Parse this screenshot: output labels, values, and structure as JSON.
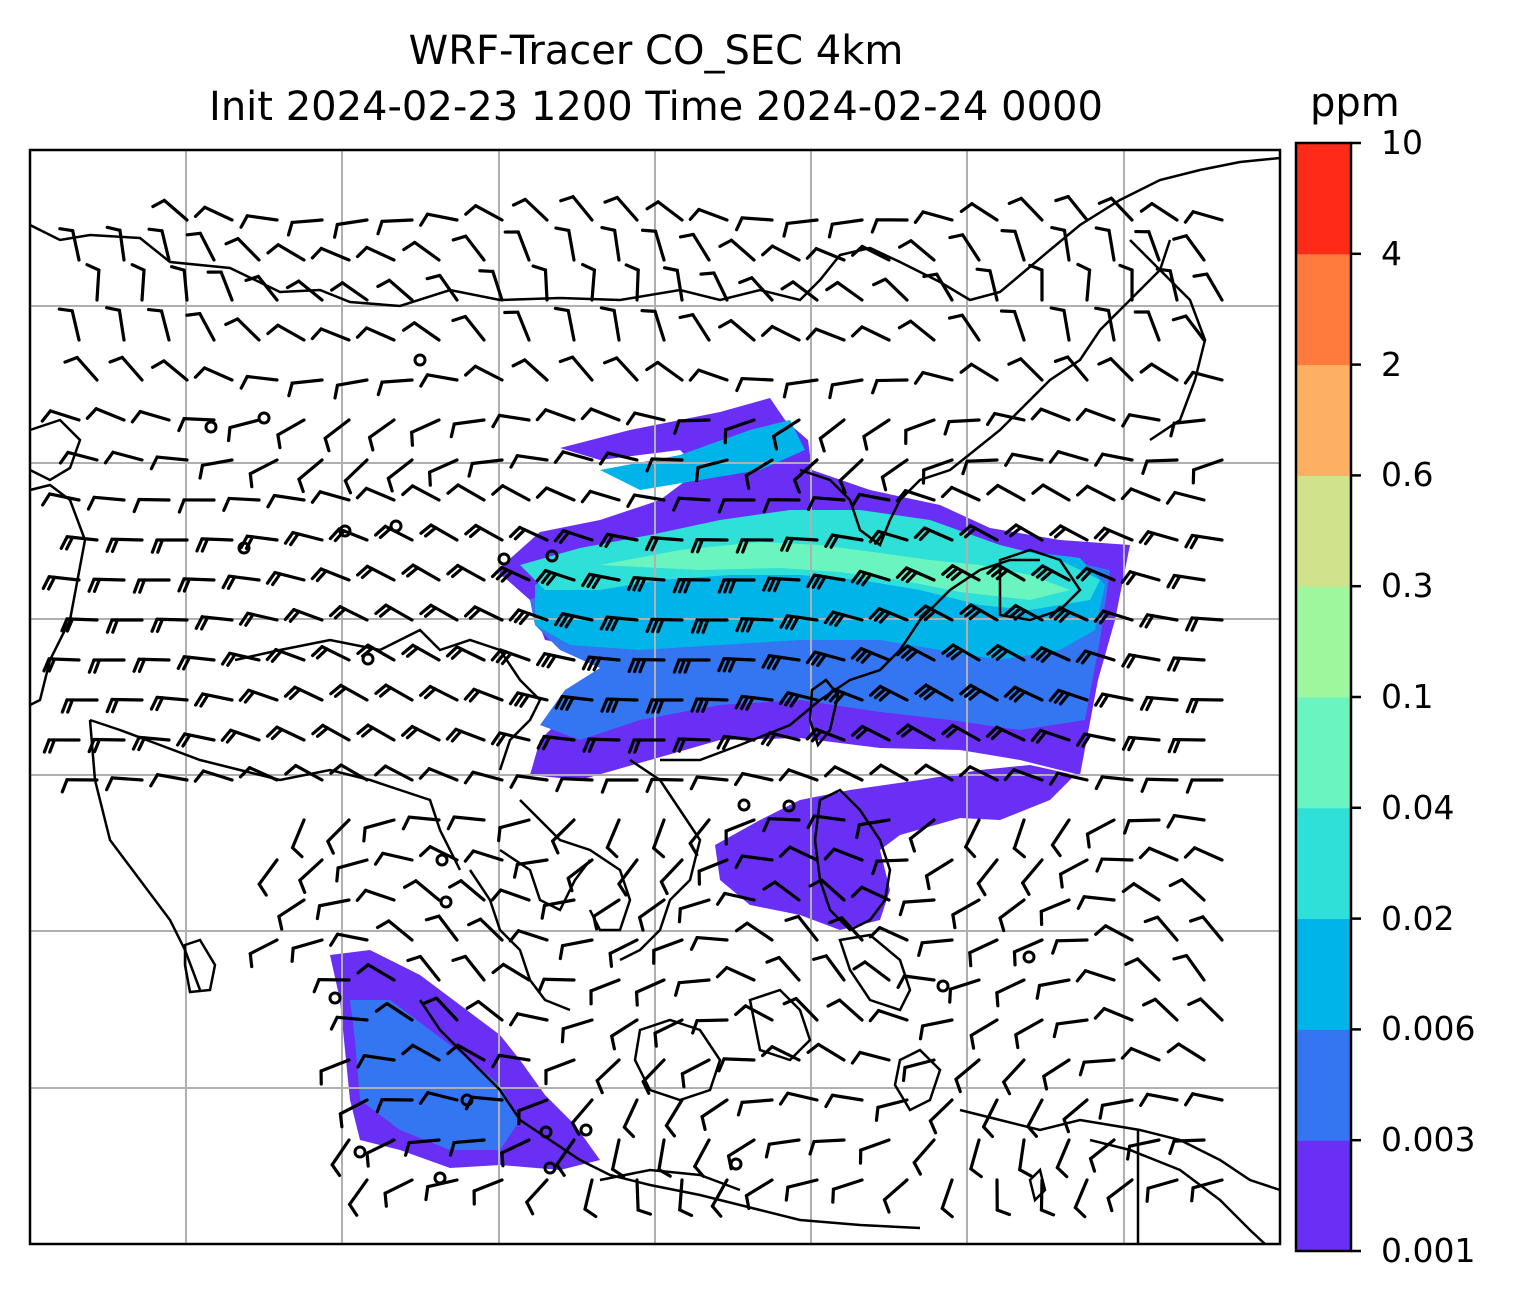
{
  "title": {
    "line1": "WRF-Tracer CO_SEC 4km",
    "line2": "Init 2024-02-23 1200 Time 2024-02-24 0000"
  },
  "colorbar": {
    "unit": "ppm",
    "levels": [
      "0.001",
      "0.003",
      "0.006",
      "0.02",
      "0.04",
      "0.1",
      "0.3",
      "0.6",
      "2",
      "4",
      "10"
    ],
    "colors": [
      "#6a2ff5",
      "#3475f2",
      "#00b4ea",
      "#2fe0d8",
      "#6af5c0",
      "#9ef79d",
      "#d0e28a",
      "#fdb063",
      "#ff7a3c",
      "#ff2b18"
    ]
  },
  "map": {
    "gridlines": true,
    "legend_placement": "right",
    "plume_colors": {
      "outer": "#6a2ff5",
      "level2": "#3475f2",
      "level3": "#00b4ea",
      "level4": "#2fe0d8",
      "level5": "#6af5c0"
    },
    "symbols": [
      "wind-barbs",
      "calm-circles",
      "coastlines"
    ]
  }
}
